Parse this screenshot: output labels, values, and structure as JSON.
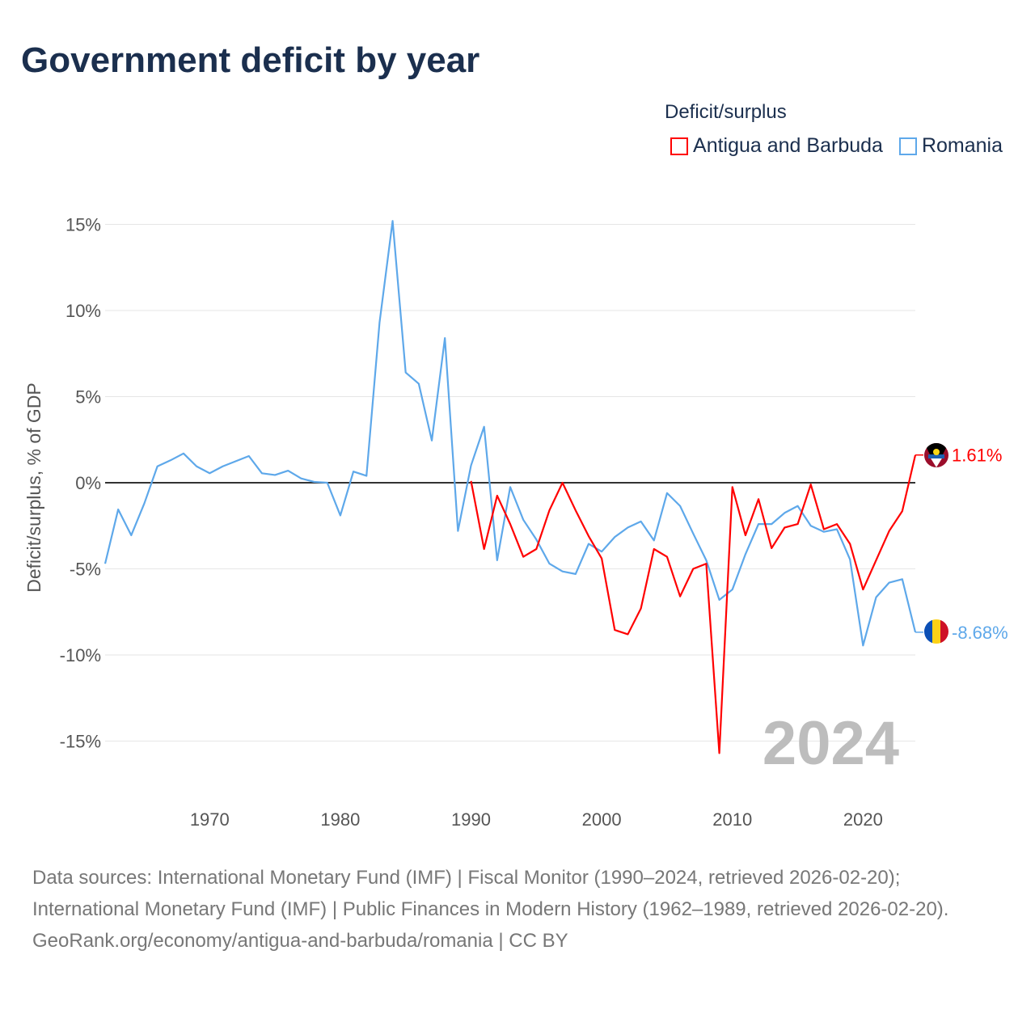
{
  "title": "Government deficit by year",
  "footer": {
    "sources": "Data sources: International Monetary Fund (IMF) | Fiscal Monitor (1990–2024, retrieved 2026-02-20); International Monetary Fund (IMF) | Public Finances in Modern History (1962–1989, retrieved 2026-02-20).",
    "link": "GeoRank.org/economy/antigua-and-barbuda/romania | CC BY"
  },
  "chart_data": {
    "type": "line",
    "title": "Government deficit by year",
    "legend_title": "Deficit/surplus",
    "legend_position": "top-right",
    "ylabel": "Deficit/surplus, % of GDP",
    "xlabel": "",
    "xlim": [
      1962,
      2024
    ],
    "ylim": [
      -17,
      17
    ],
    "yticks": [
      15,
      10,
      5,
      0,
      -5,
      -10,
      -15
    ],
    "ytick_labels": [
      "15%",
      "10%",
      "5%",
      "0%",
      "-5%",
      "-10%",
      "-15%"
    ],
    "xticks": [
      1970,
      1980,
      1990,
      2000,
      2010,
      2020
    ],
    "xtick_labels": [
      "1970",
      "1980",
      "1990",
      "2000",
      "2010",
      "2020"
    ],
    "year_watermark": "2024",
    "series": [
      {
        "name": "Antigua and Barbuda",
        "color": "#ff0000",
        "end_label": "1.61%",
        "start_year": 1990,
        "values": [
          0.1,
          -3.85,
          -0.75,
          -2.4,
          -4.3,
          -3.85,
          -1.6,
          0.0,
          -1.6,
          -3.1,
          -4.4,
          -8.55,
          -8.8,
          -7.3,
          -3.85,
          -4.3,
          -6.6,
          -5.0,
          -4.7,
          -15.7,
          -0.25,
          -3.05,
          -0.95,
          -3.8,
          -2.6,
          -2.4,
          -0.1,
          -2.7,
          -2.4,
          -3.55,
          -6.2,
          -4.5,
          -2.8,
          -1.65,
          1.61
        ]
      },
      {
        "name": "Romania",
        "color": "#5ea8ea",
        "end_label": "-8.68%",
        "start_year": 1962,
        "values": [
          -4.7,
          -1.55,
          -3.05,
          -1.2,
          0.95,
          1.3,
          1.7,
          0.95,
          0.55,
          0.95,
          1.25,
          1.55,
          0.55,
          0.45,
          0.7,
          0.25,
          0.05,
          0.0,
          -1.9,
          0.65,
          0.4,
          9.3,
          15.2,
          6.4,
          5.75,
          2.45,
          8.4,
          -2.8,
          1.0,
          3.25,
          -4.5,
          -0.25,
          -2.15,
          -3.3,
          -4.7,
          -5.15,
          -5.3,
          -3.55,
          -4.0,
          -3.15,
          -2.6,
          -2.25,
          -3.35,
          -0.6,
          -1.35,
          -2.95,
          -4.5,
          -6.8,
          -6.2,
          -4.15,
          -2.4,
          -2.4,
          -1.75,
          -1.35,
          -2.5,
          -2.85,
          -2.7,
          -4.45,
          -9.45,
          -6.65,
          -5.8,
          -5.6,
          -8.68
        ]
      }
    ]
  }
}
